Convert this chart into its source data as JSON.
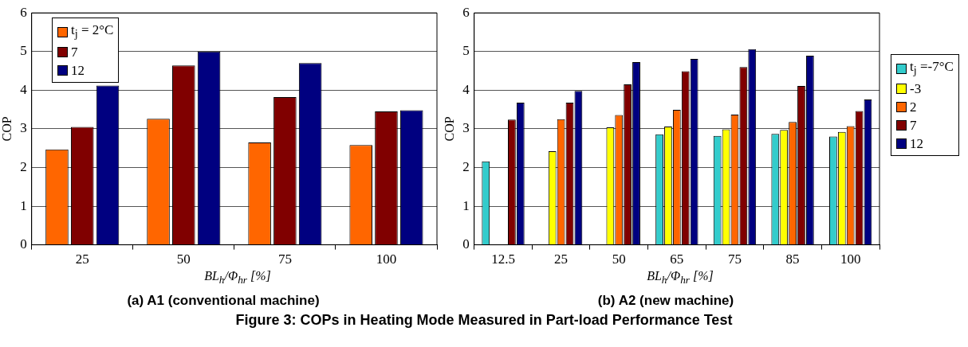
{
  "chart_data": [
    {
      "type": "bar",
      "title": "(a) A1 (conventional machine)",
      "xlabel": "BL$_{h}$/Φ$_{hr}$   [%]",
      "ylabel": "COP",
      "categories": [
        "25",
        "50",
        "75",
        "100"
      ],
      "series": [
        {
          "name": "t$_{j}$ = 2°C",
          "color": "#ff6600",
          "values": [
            2.47,
            3.26,
            2.65,
            2.58
          ]
        },
        {
          "name": "7",
          "color": "#800000",
          "values": [
            3.05,
            4.64,
            3.82,
            3.45
          ]
        },
        {
          "name": "12",
          "color": "#000080",
          "values": [
            4.12,
            5.0,
            4.7,
            3.48
          ]
        }
      ],
      "ylim": [
        0,
        6
      ],
      "yticks": [
        0,
        1,
        2,
        3,
        4,
        5,
        6
      ],
      "grid": "y",
      "legend": "top left"
    },
    {
      "type": "bar",
      "title": "(b) A2 (new machine)",
      "xlabel": "BL$_{h}$/Φ$_{hr}$   [%]",
      "ylabel": "COP",
      "categories": [
        "12.5",
        "25",
        "50",
        "65",
        "75",
        "85",
        "100"
      ],
      "series": [
        {
          "name": "t$_{j}$ =-7°C",
          "color": "#33cccc",
          "values": [
            2.16,
            null,
            null,
            2.86,
            2.82,
            2.87,
            2.8
          ]
        },
        {
          "name": "-3",
          "color": "#ffff00",
          "values": [
            null,
            2.42,
            3.04,
            3.06,
            2.99,
            2.97,
            2.92
          ]
        },
        {
          "name": "2",
          "color": "#ff6600",
          "values": [
            null,
            3.25,
            3.36,
            3.49,
            3.37,
            3.18,
            3.07
          ]
        },
        {
          "name": "7",
          "color": "#800000",
          "values": [
            3.24,
            3.68,
            4.15,
            4.49,
            4.6,
            4.11,
            3.46
          ]
        },
        {
          "name": "12",
          "color": "#000080",
          "values": [
            3.68,
            3.98,
            4.73,
            4.81,
            5.06,
            4.89,
            3.76
          ]
        }
      ],
      "ylim": [
        0,
        6
      ],
      "yticks": [
        0,
        1,
        2,
        3,
        4,
        5,
        6
      ],
      "grid": "y",
      "legend": "right",
      "annotations": [
        "Figure 3: COPs in Heating Mode Measured in Part-load Performance Test"
      ]
    }
  ]
}
